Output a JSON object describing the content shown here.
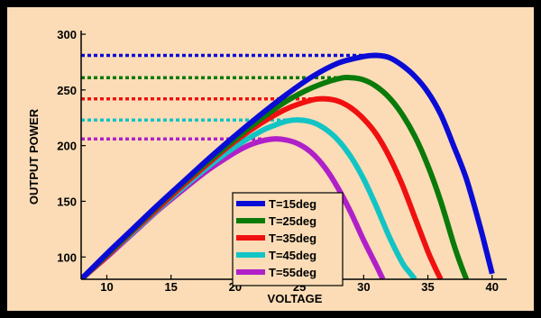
{
  "colors": {
    "frame": "#000000",
    "plot_background": "#fbdcb6",
    "axis": "#000000"
  },
  "chart_data": {
    "type": "line",
    "title": "",
    "xlabel": "VOLTAGE",
    "ylabel": "OUTPUT POWER",
    "xlim": [
      8,
      41
    ],
    "ylim": [
      80,
      300
    ],
    "xticks": [
      10,
      15,
      20,
      25,
      30,
      35,
      40
    ],
    "yticks": [
      100,
      150,
      200,
      250,
      300
    ],
    "grid": false,
    "legend_position": "bottom-center",
    "series": [
      {
        "name": "T=15deg",
        "color": "#0b0bd6",
        "x": [
          8,
          10,
          12,
          14,
          16,
          18,
          20,
          22,
          24,
          26,
          28,
          30,
          31,
          32,
          33,
          34,
          35,
          36,
          37,
          38,
          39,
          39.5,
          40
        ],
        "y": [
          80,
          103,
          125,
          147,
          168,
          189,
          209,
          228,
          246,
          262,
          274,
          280,
          281,
          279,
          272,
          262,
          248,
          228,
          200,
          170,
          130,
          108,
          85
        ],
        "max_power": 281,
        "voltage_at_max": 31
      },
      {
        "name": "T=25deg",
        "color": "#0a7a0a",
        "x": [
          8,
          10,
          12,
          14,
          16,
          18,
          20,
          22,
          24,
          26,
          28,
          29,
          30,
          31,
          32,
          33,
          34,
          35,
          36,
          37,
          37.5,
          38
        ],
        "y": [
          80,
          102,
          124,
          146,
          167,
          187,
          206,
          224,
          240,
          252,
          260,
          261,
          259,
          253,
          243,
          228,
          208,
          182,
          150,
          112,
          95,
          80
        ],
        "max_power": 261,
        "voltage_at_max": 29
      },
      {
        "name": "T=35deg",
        "color": "#f01010",
        "x": [
          8,
          10,
          12,
          14,
          16,
          18,
          20,
          22,
          24,
          26,
          27,
          28,
          29,
          30,
          31,
          32,
          33,
          34,
          35,
          35.5,
          36
        ],
        "y": [
          80,
          101,
          123,
          144,
          165,
          185,
          204,
          220,
          233,
          241,
          242,
          240,
          234,
          224,
          210,
          190,
          165,
          135,
          105,
          92,
          80
        ],
        "max_power": 242,
        "voltage_at_max": 27
      },
      {
        "name": "T=45deg",
        "color": "#12c4c4",
        "x": [
          8,
          10,
          12,
          14,
          16,
          18,
          20,
          22,
          23,
          24,
          25,
          26,
          27,
          28,
          29,
          30,
          31,
          32,
          33,
          33.5,
          34
        ],
        "y": [
          80,
          101,
          122,
          143,
          163,
          182,
          199,
          213,
          218,
          222,
          223,
          221,
          215,
          205,
          190,
          170,
          145,
          118,
          95,
          87,
          80
        ],
        "max_power": 223,
        "voltage_at_max": 25
      },
      {
        "name": "T=55deg",
        "color": "#b020c8",
        "x": [
          8,
          10,
          12,
          14,
          16,
          18,
          20,
          21,
          22,
          23,
          24,
          25,
          26,
          27,
          28,
          29,
          30,
          31,
          31.5
        ],
        "y": [
          80,
          100,
          121,
          142,
          161,
          179,
          194,
          200,
          204,
          206,
          205,
          201,
          193,
          180,
          162,
          140,
          115,
          92,
          80
        ],
        "max_power": 206,
        "voltage_at_max": 23.5
      }
    ]
  }
}
